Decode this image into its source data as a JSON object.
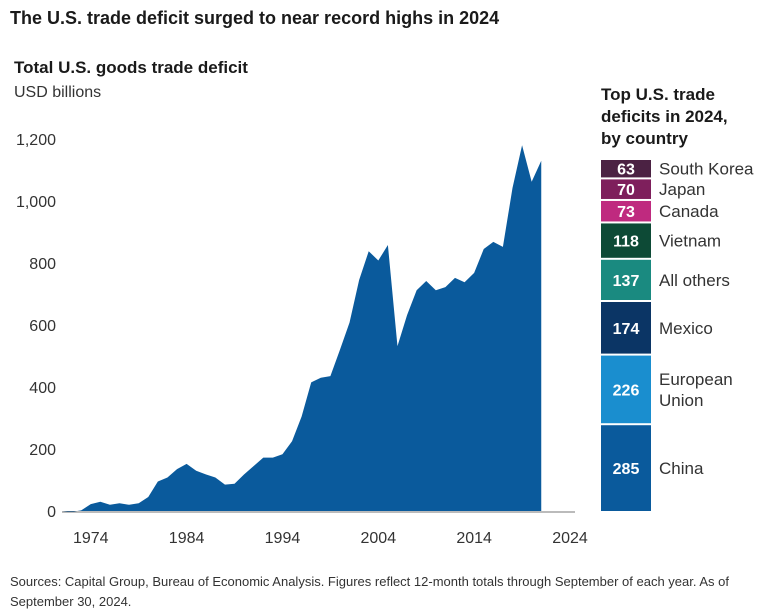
{
  "headline": "The U.S. trade deficit surged to near record highs in 2024",
  "source": "Sources: Capital Group, Bureau of Economic Analysis. Figures reflect 12-month totals through September of each year. As of September 30, 2024.",
  "colors": {
    "area": "#0a5a9c",
    "axis": "#777777"
  },
  "chart_data": [
    {
      "type": "area",
      "title": "Total U.S. goods trade deficit",
      "ylabel": "USD billions",
      "xlabel": "",
      "xlim": [
        1971,
        2024
      ],
      "ylim": [
        0,
        1200
      ],
      "xticks": [
        {
          "v": 1974,
          "label": "1974"
        },
        {
          "v": 1984,
          "label": "1984"
        },
        {
          "v": 1994,
          "label": "1994"
        },
        {
          "v": 2004,
          "label": "2004"
        },
        {
          "v": 2014,
          "label": "2014"
        },
        {
          "v": 2024,
          "label": "2024"
        }
      ],
      "yticks": [
        {
          "v": 0,
          "label": "0"
        },
        {
          "v": 200,
          "label": "200"
        },
        {
          "v": 400,
          "label": "400"
        },
        {
          "v": 600,
          "label": "600"
        },
        {
          "v": 800,
          "label": "800"
        },
        {
          "v": 1000,
          "label": "1,000"
        },
        {
          "v": 1200,
          "label": "1,200"
        }
      ],
      "x": [
        1971,
        1972,
        1973,
        1974,
        1975,
        1976,
        1977,
        1978,
        1979,
        1980,
        1981,
        1982,
        1983,
        1984,
        1985,
        1986,
        1987,
        1988,
        1989,
        1990,
        1991,
        1992,
        1993,
        1994,
        1995,
        1996,
        1997,
        1998,
        1999,
        2000,
        2001,
        2002,
        2003,
        2004,
        2005,
        2006,
        2007,
        2008,
        2009,
        2010,
        2011,
        2012,
        2013,
        2014,
        2015,
        2016,
        2017,
        2018,
        2019,
        2020,
        2021,
        2022,
        2023,
        2024
      ],
      "values": [
        0,
        -3,
        2,
        22,
        30,
        20,
        25,
        20,
        25,
        45,
        95,
        108,
        135,
        152,
        130,
        118,
        108,
        85,
        88,
        118,
        145,
        172,
        172,
        183,
        225,
        305,
        415,
        430,
        435,
        520,
        608,
        745,
        838,
        808,
        858,
        532,
        632,
        712,
        742,
        712,
        722,
        752,
        738,
        768,
        845,
        868,
        852,
        1042,
        1180,
        1062,
        1130,
        0,
        0,
        0
      ]
    },
    {
      "type": "bar",
      "title": "Top U.S. trade deficits in 2024, by country",
      "categories": [
        "South Korea",
        "Japan",
        "Canada",
        "Vietnam",
        "All others",
        "Mexico",
        "European Union",
        "China"
      ],
      "values": [
        63,
        70,
        73,
        118,
        137,
        174,
        226,
        285
      ],
      "colors": [
        "#4b2243",
        "#7e1f5c",
        "#bf2a7f",
        "#0d4a36",
        "#1a8a80",
        "#0b3565",
        "#1a8ecf",
        "#0a5a9c"
      ]
    }
  ]
}
